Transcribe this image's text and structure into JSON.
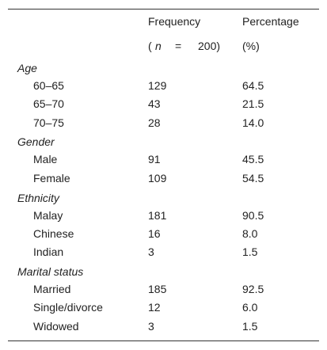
{
  "table": {
    "columns": [
      "Frequency",
      "Percentage"
    ],
    "n_note": [
      "(",
      "n",
      "=",
      "200)"
    ],
    "pct_note": "(%)",
    "sections": [
      {
        "title": "Age",
        "rows": [
          [
            "60–65",
            "129",
            "64.5"
          ],
          [
            "65–70",
            "43",
            "21.5"
          ],
          [
            "70–75",
            "28",
            "14.0"
          ]
        ]
      },
      {
        "title": "Gender",
        "rows": [
          [
            "Male",
            "91",
            "45.5"
          ],
          [
            "Female",
            "109",
            "54.5"
          ]
        ]
      },
      {
        "title": "Ethnicity",
        "rows": [
          [
            "Malay",
            "181",
            "90.5"
          ],
          [
            "Chinese",
            "16",
            "8.0"
          ],
          [
            "Indian",
            "3",
            "1.5"
          ]
        ]
      },
      {
        "title": "Marital status",
        "rows": [
          [
            "Married",
            "185",
            "92.5"
          ],
          [
            "Single/divorce",
            "12",
            "6.0"
          ],
          [
            "Widowed",
            "3",
            "1.5"
          ]
        ]
      }
    ]
  }
}
